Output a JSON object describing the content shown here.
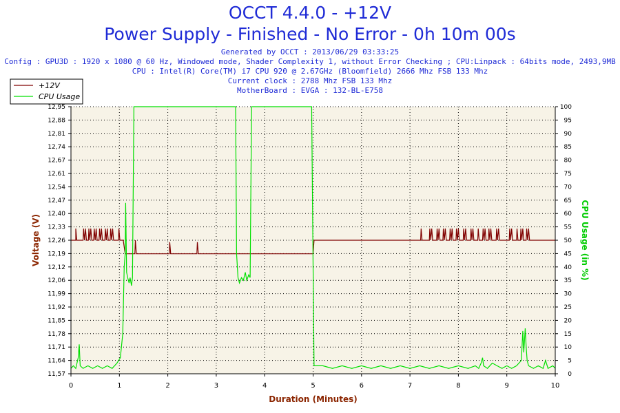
{
  "header": {
    "title": "OCCT 4.4.0 - +12V",
    "subtitle": "Power Supply - Finished - No Error - 0h 10m 00s",
    "info_lines": [
      "Generated by OCCT : 2013/06/29 03:33:25",
      "Config : GPU3D : 1920 x 1080 @ 60 Hz, Windowed mode, Shader Complexity 1, without Error Checking ; CPU:Linpack : 64bits mode, 2493,9MB",
      "CPU : Intel(R) Core(TM) i7 CPU 920 @ 2.67GHz (Bloomfield) 2666 Mhz FSB 133 Mhz",
      "Current clock : 2788 Mhz FSB 133 Mhz",
      "MotherBoard : EVGA : 132-BL-E758"
    ]
  },
  "colors": {
    "voltage": "#800000",
    "cpu": "#00e000",
    "plot_bg": "#f7f3e7",
    "title": "#1f2bd6"
  },
  "chart_data": {
    "type": "line",
    "xlabel": "Duration (Minutes)",
    "ylabel_left": "Voltage (V)",
    "ylabel_right": "CPU Usage (in %)",
    "xlim": [
      0,
      10
    ],
    "x_ticks": [
      "0",
      "1",
      "2",
      "3",
      "4",
      "5",
      "6",
      "7",
      "8",
      "9",
      "10"
    ],
    "ylim_left": [
      11.57,
      12.95
    ],
    "y_ticks_left": [
      "11,57",
      "11,64",
      "11,71",
      "11,78",
      "11,85",
      "11,92",
      "11,99",
      "12,06",
      "12,12",
      "12,19",
      "12,26",
      "12,33",
      "12,40",
      "12,47",
      "12,54",
      "12,61",
      "12,67",
      "12,74",
      "12,81",
      "12,88",
      "12,95"
    ],
    "ylim_right": [
      0,
      100
    ],
    "y_ticks_right": [
      "0",
      "5",
      "10",
      "15",
      "20",
      "25",
      "30",
      "35",
      "40",
      "45",
      "50",
      "55",
      "60",
      "65",
      "70",
      "75",
      "80",
      "85",
      "90",
      "95",
      "100"
    ],
    "grid": true,
    "legend_position": "top-left",
    "series": [
      {
        "name": "+12V",
        "axis": "left",
        "color": "#800000",
        "points": [
          [
            0,
            12.26
          ],
          [
            0.1,
            12.26
          ],
          [
            0.1,
            12.32
          ],
          [
            0.12,
            12.26
          ],
          [
            0.25,
            12.26
          ],
          [
            0.26,
            12.32
          ],
          [
            0.28,
            12.26
          ],
          [
            0.3,
            12.32
          ],
          [
            0.32,
            12.26
          ],
          [
            0.36,
            12.26
          ],
          [
            0.37,
            12.32
          ],
          [
            0.39,
            12.26
          ],
          [
            0.41,
            12.32
          ],
          [
            0.43,
            12.26
          ],
          [
            0.47,
            12.26
          ],
          [
            0.48,
            12.32
          ],
          [
            0.5,
            12.26
          ],
          [
            0.52,
            12.32
          ],
          [
            0.54,
            12.26
          ],
          [
            0.58,
            12.26
          ],
          [
            0.59,
            12.32
          ],
          [
            0.61,
            12.26
          ],
          [
            0.63,
            12.32
          ],
          [
            0.65,
            12.26
          ],
          [
            0.7,
            12.26
          ],
          [
            0.71,
            12.32
          ],
          [
            0.73,
            12.26
          ],
          [
            0.75,
            12.32
          ],
          [
            0.77,
            12.26
          ],
          [
            0.81,
            12.26
          ],
          [
            0.82,
            12.32
          ],
          [
            0.84,
            12.26
          ],
          [
            0.86,
            12.32
          ],
          [
            0.88,
            12.26
          ],
          [
            0.98,
            12.26
          ],
          [
            0.99,
            12.32
          ],
          [
            1.01,
            12.26
          ],
          [
            1.08,
            12.26
          ],
          [
            1.12,
            12.19
          ],
          [
            1.32,
            12.19
          ],
          [
            1.33,
            12.26
          ],
          [
            1.35,
            12.19
          ],
          [
            2.03,
            12.19
          ],
          [
            2.04,
            12.25
          ],
          [
            2.06,
            12.19
          ],
          [
            2.6,
            12.19
          ],
          [
            2.61,
            12.25
          ],
          [
            2.63,
            12.19
          ],
          [
            5.0,
            12.19
          ],
          [
            5.02,
            12.26
          ],
          [
            7.22,
            12.26
          ],
          [
            7.23,
            12.32
          ],
          [
            7.25,
            12.26
          ],
          [
            7.4,
            12.26
          ],
          [
            7.41,
            12.32
          ],
          [
            7.43,
            12.26
          ],
          [
            7.45,
            12.32
          ],
          [
            7.47,
            12.26
          ],
          [
            7.55,
            12.26
          ],
          [
            7.56,
            12.32
          ],
          [
            7.58,
            12.26
          ],
          [
            7.6,
            12.32
          ],
          [
            7.62,
            12.26
          ],
          [
            7.68,
            12.26
          ],
          [
            7.69,
            12.32
          ],
          [
            7.71,
            12.26
          ],
          [
            7.73,
            12.32
          ],
          [
            7.75,
            12.26
          ],
          [
            7.82,
            12.26
          ],
          [
            7.83,
            12.32
          ],
          [
            7.85,
            12.26
          ],
          [
            7.87,
            12.32
          ],
          [
            7.89,
            12.26
          ],
          [
            7.95,
            12.26
          ],
          [
            7.96,
            12.32
          ],
          [
            7.98,
            12.26
          ],
          [
            8.0,
            12.32
          ],
          [
            8.02,
            12.26
          ],
          [
            8.1,
            12.26
          ],
          [
            8.11,
            12.32
          ],
          [
            8.13,
            12.26
          ],
          [
            8.15,
            12.32
          ],
          [
            8.17,
            12.26
          ],
          [
            8.25,
            12.26
          ],
          [
            8.26,
            12.32
          ],
          [
            8.28,
            12.26
          ],
          [
            8.3,
            12.32
          ],
          [
            8.32,
            12.26
          ],
          [
            8.4,
            12.26
          ],
          [
            8.41,
            12.32
          ],
          [
            8.43,
            12.26
          ],
          [
            8.5,
            12.26
          ],
          [
            8.51,
            12.32
          ],
          [
            8.53,
            12.26
          ],
          [
            8.55,
            12.32
          ],
          [
            8.57,
            12.26
          ],
          [
            8.62,
            12.26
          ],
          [
            8.63,
            12.32
          ],
          [
            8.65,
            12.26
          ],
          [
            8.67,
            12.32
          ],
          [
            8.69,
            12.26
          ],
          [
            8.78,
            12.26
          ],
          [
            8.79,
            12.32
          ],
          [
            8.81,
            12.26
          ],
          [
            8.83,
            12.32
          ],
          [
            8.85,
            12.26
          ],
          [
            9.05,
            12.26
          ],
          [
            9.06,
            12.32
          ],
          [
            9.08,
            12.26
          ],
          [
            9.1,
            12.32
          ],
          [
            9.12,
            12.26
          ],
          [
            9.2,
            12.26
          ],
          [
            9.21,
            12.32
          ],
          [
            9.23,
            12.26
          ],
          [
            9.28,
            12.26
          ],
          [
            9.29,
            12.32
          ],
          [
            9.31,
            12.26
          ],
          [
            9.33,
            12.32
          ],
          [
            9.35,
            12.26
          ],
          [
            9.4,
            12.26
          ],
          [
            9.41,
            12.32
          ],
          [
            9.43,
            12.26
          ],
          [
            9.45,
            12.32
          ],
          [
            9.47,
            12.26
          ],
          [
            10,
            12.26
          ]
        ]
      },
      {
        "name": "CPU Usage",
        "axis": "right",
        "color": "#00e000",
        "points": [
          [
            0,
            2
          ],
          [
            0.05,
            3
          ],
          [
            0.1,
            2
          ],
          [
            0.15,
            6
          ],
          [
            0.17,
            11
          ],
          [
            0.19,
            3
          ],
          [
            0.25,
            2
          ],
          [
            0.35,
            3
          ],
          [
            0.45,
            2
          ],
          [
            0.55,
            3
          ],
          [
            0.65,
            2
          ],
          [
            0.75,
            3
          ],
          [
            0.85,
            2
          ],
          [
            0.95,
            4
          ],
          [
            1.02,
            6
          ],
          [
            1.07,
            15
          ],
          [
            1.1,
            40
          ],
          [
            1.12,
            45
          ],
          [
            1.13,
            64
          ],
          [
            1.15,
            38
          ],
          [
            1.17,
            36
          ],
          [
            1.2,
            34
          ],
          [
            1.22,
            36
          ],
          [
            1.25,
            33
          ],
          [
            1.27,
            36
          ],
          [
            1.3,
            100
          ],
          [
            3.4,
            100
          ],
          [
            3.42,
            45
          ],
          [
            3.45,
            36
          ],
          [
            3.48,
            34
          ],
          [
            3.52,
            36
          ],
          [
            3.56,
            35
          ],
          [
            3.6,
            38
          ],
          [
            3.63,
            35
          ],
          [
            3.67,
            37
          ],
          [
            3.7,
            36
          ],
          [
            3.73,
            100
          ],
          [
            4.97,
            100
          ],
          [
            5.0,
            40
          ],
          [
            5.02,
            3
          ],
          [
            5.2,
            3
          ],
          [
            5.4,
            2
          ],
          [
            5.6,
            3
          ],
          [
            5.8,
            2
          ],
          [
            6.0,
            3
          ],
          [
            6.2,
            2
          ],
          [
            6.4,
            3
          ],
          [
            6.6,
            2
          ],
          [
            6.8,
            3
          ],
          [
            7.0,
            2
          ],
          [
            7.2,
            3
          ],
          [
            7.4,
            2
          ],
          [
            7.6,
            3
          ],
          [
            7.8,
            2
          ],
          [
            8.0,
            3
          ],
          [
            8.2,
            2
          ],
          [
            8.35,
            3
          ],
          [
            8.42,
            2
          ],
          [
            8.47,
            4
          ],
          [
            8.5,
            6
          ],
          [
            8.52,
            3
          ],
          [
            8.6,
            2
          ],
          [
            8.7,
            4
          ],
          [
            8.8,
            3
          ],
          [
            8.9,
            2
          ],
          [
            9.0,
            3
          ],
          [
            9.1,
            2
          ],
          [
            9.2,
            3
          ],
          [
            9.3,
            5
          ],
          [
            9.33,
            16
          ],
          [
            9.35,
            8
          ],
          [
            9.38,
            17
          ],
          [
            9.4,
            10
          ],
          [
            9.42,
            5
          ],
          [
            9.45,
            3
          ],
          [
            9.55,
            2
          ],
          [
            9.65,
            3
          ],
          [
            9.75,
            2
          ],
          [
            9.8,
            5
          ],
          [
            9.85,
            2
          ],
          [
            9.95,
            3
          ],
          [
            10,
            2
          ]
        ]
      }
    ]
  }
}
